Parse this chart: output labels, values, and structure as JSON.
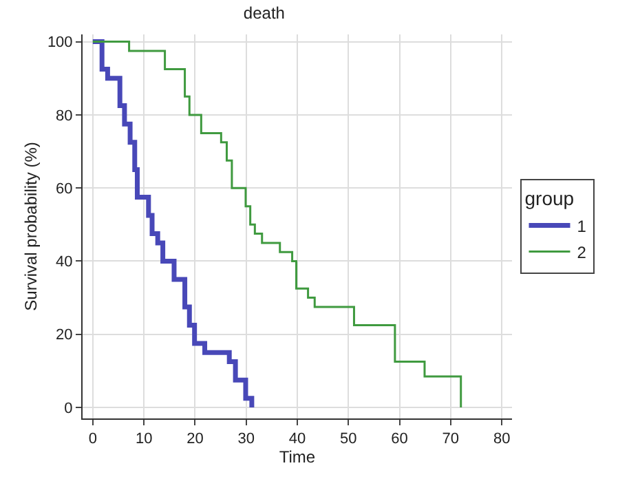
{
  "chart_data": {
    "type": "step",
    "title": "death",
    "xlabel": "Time",
    "ylabel": "Survival probability (%)",
    "legend_title": "group",
    "series": [
      {
        "name": "1",
        "color": "#4848b8",
        "x": [
          0,
          1.8,
          2.9,
          5.3,
          6.2,
          7.3,
          8.2,
          8.7,
          10.9,
          11.6,
          12.7,
          13.7,
          15.9,
          18,
          18.9,
          19.9,
          21.9,
          26.7,
          27.9,
          29.9,
          31.1
        ],
        "values": [
          100,
          92.5,
          90,
          82.5,
          77.5,
          72.5,
          65,
          57.5,
          52.5,
          47.5,
          45,
          40,
          35,
          27.5,
          22.5,
          17.5,
          15,
          12.5,
          7.5,
          2.5,
          0
        ]
      },
      {
        "name": "2",
        "color": "#3f9a3f",
        "x": [
          0,
          7.1,
          14.1,
          18,
          18.9,
          21.2,
          25.1,
          26.2,
          27.2,
          29.9,
          30.8,
          31.7,
          33.1,
          36.6,
          39,
          39.8,
          42.1,
          43.4,
          51.1,
          59.1,
          64.9,
          72
        ],
        "values": [
          100,
          97.5,
          92.5,
          85,
          80,
          75,
          72.5,
          67.5,
          60,
          55,
          50,
          47.5,
          45,
          42.5,
          40,
          32.5,
          30,
          27.5,
          22.5,
          12.5,
          8.5,
          0
        ]
      }
    ],
    "xlim": [
      -2,
      82
    ],
    "xticks": [
      0,
      10,
      20,
      30,
      40,
      50,
      60,
      70,
      80
    ],
    "ylim": [
      -3,
      102
    ],
    "yticks": [
      0,
      20,
      40,
      60,
      80,
      100
    ],
    "grid": true,
    "legend": "right",
    "line_style": "solid",
    "marker": "none"
  }
}
